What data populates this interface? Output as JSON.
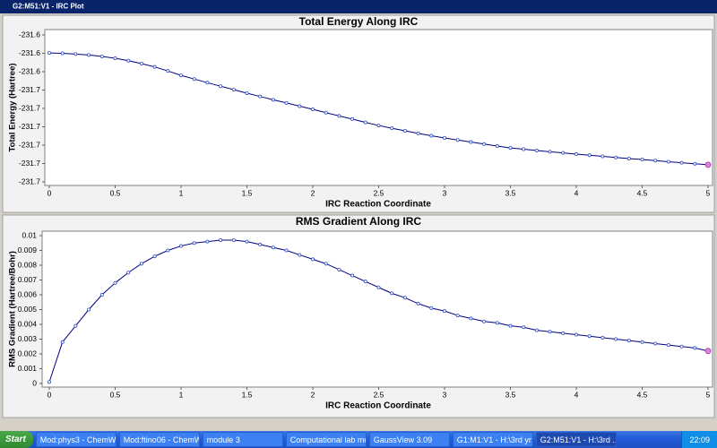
{
  "window": {
    "title": "G2:M51:V1 - IRC Plot"
  },
  "chart_data": [
    {
      "type": "line",
      "title": "Total Energy Along IRC",
      "xlabel": "IRC Reaction Coordinate",
      "ylabel": "Total Energy (Hartree)",
      "x": [
        0,
        0.1,
        0.2,
        0.3,
        0.4,
        0.5,
        0.6,
        0.7,
        0.8,
        0.9,
        1,
        1.1,
        1.2,
        1.3,
        1.4,
        1.5,
        1.6,
        1.7,
        1.8,
        1.9,
        2,
        2.1,
        2.2,
        2.3,
        2.4,
        2.5,
        2.6,
        2.7,
        2.8,
        2.9,
        3,
        3.1,
        3.2,
        3.3,
        3.4,
        3.5,
        3.6,
        3.7,
        3.8,
        3.9,
        4,
        4.1,
        4.2,
        4.3,
        4.4,
        4.5,
        4.6,
        4.7,
        4.8,
        4.9,
        5
      ],
      "series": [
        {
          "color": "#000080",
          "values": [
            -231.6298,
            -231.63,
            -231.6304,
            -231.6309,
            -231.6317,
            -231.6327,
            -231.634,
            -231.6356,
            -231.6374,
            -231.6396,
            -231.642,
            -231.644,
            -231.646,
            -231.6479,
            -231.6498,
            -231.6517,
            -231.6535,
            -231.6553,
            -231.657,
            -231.6588,
            -231.6605,
            -231.6623,
            -231.6641,
            -231.6658,
            -231.6676,
            -231.6693,
            -231.6708,
            -231.6722,
            -231.6736,
            -231.6749,
            -231.6761,
            -231.6772,
            -231.6783,
            -231.6794,
            -231.6805,
            -231.6815,
            -231.6822,
            -231.6829,
            -231.6836,
            -231.6842,
            -231.6849,
            -231.6855,
            -231.6861,
            -231.6867,
            -231.6873,
            -231.6878,
            -231.6884,
            -231.689,
            -231.6896,
            -231.6901,
            -231.6907
          ]
        }
      ],
      "xlim": [
        0,
        5
      ],
      "xticks": [
        0,
        0.5,
        1,
        1.5,
        2,
        2.5,
        3,
        3.5,
        4,
        4.5,
        5
      ],
      "ylim": [
        -231.7,
        -231.62
      ],
      "yticks": [
        {
          "value": -231.62,
          "label": "-231.6"
        },
        {
          "value": -231.63,
          "label": "-231.6"
        },
        {
          "value": -231.64,
          "label": "-231.6"
        },
        {
          "value": -231.65,
          "label": "-231.7"
        },
        {
          "value": -231.66,
          "label": "-231.7"
        },
        {
          "value": -231.67,
          "label": "-231.7"
        },
        {
          "value": -231.68,
          "label": "-231.7"
        },
        {
          "value": -231.69,
          "label": "-231.7"
        },
        {
          "value": -231.7,
          "label": "-231.7"
        }
      ]
    },
    {
      "type": "line",
      "title": "RMS Gradient Along IRC",
      "xlabel": "IRC Reaction Coordinate",
      "ylabel": "RMS Gradient (Hartree/Bohr)",
      "x": [
        0,
        0.1,
        0.2,
        0.3,
        0.4,
        0.5,
        0.6,
        0.7,
        0.8,
        0.9,
        1,
        1.1,
        1.2,
        1.3,
        1.4,
        1.5,
        1.6,
        1.7,
        1.8,
        1.9,
        2,
        2.1,
        2.2,
        2.3,
        2.4,
        2.5,
        2.6,
        2.7,
        2.8,
        2.9,
        3,
        3.1,
        3.2,
        3.3,
        3.4,
        3.5,
        3.6,
        3.7,
        3.8,
        3.9,
        4,
        4.1,
        4.2,
        4.3,
        4.4,
        4.5,
        4.6,
        4.7,
        4.8,
        4.9,
        5
      ],
      "series": [
        {
          "color": "#000080",
          "values": [
            0.0001,
            0.0028,
            0.0039,
            0.005,
            0.006,
            0.0068,
            0.0075,
            0.0081,
            0.0086,
            0.009,
            0.0093,
            0.0095,
            0.0096,
            0.0097,
            0.0097,
            0.0096,
            0.0094,
            0.0092,
            0.009,
            0.0087,
            0.0084,
            0.0081,
            0.0077,
            0.0073,
            0.0069,
            0.0065,
            0.0061,
            0.0058,
            0.0054,
            0.0051,
            0.0049,
            0.0046,
            0.0044,
            0.0042,
            0.0041,
            0.0039,
            0.0038,
            0.0036,
            0.0035,
            0.0034,
            0.0033,
            0.0032,
            0.0031,
            0.003,
            0.0029,
            0.0028,
            0.0027,
            0.0026,
            0.0025,
            0.0024,
            0.0022
          ]
        }
      ],
      "xlim": [
        0,
        5
      ],
      "xticks": [
        0,
        0.5,
        1,
        1.5,
        2,
        2.5,
        3,
        3.5,
        4,
        4.5,
        5
      ],
      "ylim": [
        0,
        0.01
      ],
      "yticks": [
        0,
        0.001,
        0.002,
        0.003,
        0.004,
        0.005,
        0.006,
        0.007,
        0.008,
        0.009,
        0.01
      ]
    }
  ],
  "taskbar": {
    "start": "Start",
    "items": [
      "Mod:phys3 - ChemWi...",
      "Mod:ftino06 - ChemW...",
      "module 3",
      "Computational lab mo...",
      "GaussView 3.09",
      "G1:M1:V1 - H:\\3rd yr ...",
      "G2:M51:V1 - H:\\3rd ..."
    ],
    "clock": "22:09"
  }
}
